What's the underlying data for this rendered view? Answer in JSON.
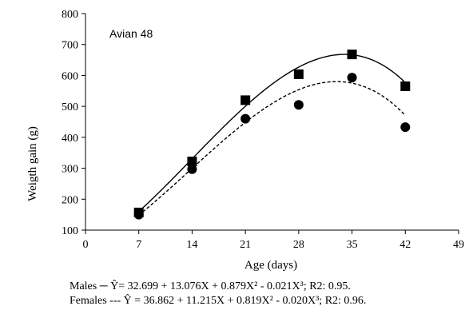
{
  "chart_data": {
    "type": "scatter",
    "annotation": "Avian 48",
    "xlabel": "Age (days)",
    "ylabel": "Weigth gain (g)",
    "xlim": [
      0,
      49
    ],
    "ylim": [
      100,
      800
    ],
    "xticks": [
      0,
      7,
      14,
      21,
      28,
      35,
      42,
      49
    ],
    "yticks": [
      100,
      200,
      300,
      400,
      500,
      600,
      700,
      800
    ],
    "grid": false,
    "series": [
      {
        "name": "Males",
        "marker": "square",
        "line_style": "solid",
        "x": [
          7,
          14,
          21,
          28,
          35,
          42
        ],
        "y": [
          157,
          322,
          520,
          604,
          668,
          565
        ],
        "curve_coefficients": [
          32.699,
          13.076,
          0.879,
          -0.021
        ]
      },
      {
        "name": "Females",
        "marker": "circle",
        "line_style": "dashed",
        "x": [
          7,
          14,
          21,
          28,
          35,
          42
        ],
        "y": [
          150,
          297,
          460,
          505,
          593,
          433
        ],
        "curve_coefficients": [
          36.862,
          11.215,
          0.819,
          -0.02
        ]
      }
    ],
    "caption_lines": [
      "Males ─ Ŷ=  32.699  +  13.076X  +  0.879X² - 0.021X³;  R2: 0.95.",
      "Females --- Ŷ = 36.862 + 11.215X + 0.819X² - 0.020X³;  R2: 0.96."
    ]
  }
}
